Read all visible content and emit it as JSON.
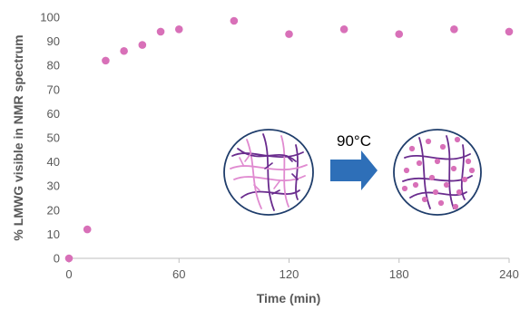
{
  "chart_data": {
    "type": "scatter",
    "title": "",
    "xlabel": "Time (min)",
    "ylabel": "% LMWG visible in NMR spectrum",
    "xlim": [
      0,
      240
    ],
    "ylim": [
      0,
      100
    ],
    "xticks": [
      0,
      60,
      120,
      180,
      240
    ],
    "yticks": [
      0,
      10,
      20,
      30,
      40,
      50,
      60,
      70,
      80,
      90,
      100
    ],
    "grid": false,
    "legend": "none",
    "series": [
      {
        "color": "#d870b8",
        "points": [
          {
            "x": 0,
            "y": 0
          },
          {
            "x": 10,
            "y": 12
          },
          {
            "x": 20,
            "y": 82
          },
          {
            "x": 30,
            "y": 86
          },
          {
            "x": 40,
            "y": 88.5
          },
          {
            "x": 50,
            "y": 94
          },
          {
            "x": 60,
            "y": 95
          },
          {
            "x": 90,
            "y": 98.5
          },
          {
            "x": 120,
            "y": 93
          },
          {
            "x": 150,
            "y": 95
          },
          {
            "x": 180,
            "y": 93
          },
          {
            "x": 210,
            "y": 95
          },
          {
            "x": 240,
            "y": 94
          }
        ]
      }
    ],
    "annotation": {
      "label": "90°C",
      "arrow_color": "#2e6fb8",
      "circle_border_color": "#1f3d6b",
      "gel_fiber_colors": [
        "#6a2c8e",
        "#e08ad0"
      ],
      "solution_dot_color": "#d870b8"
    }
  }
}
